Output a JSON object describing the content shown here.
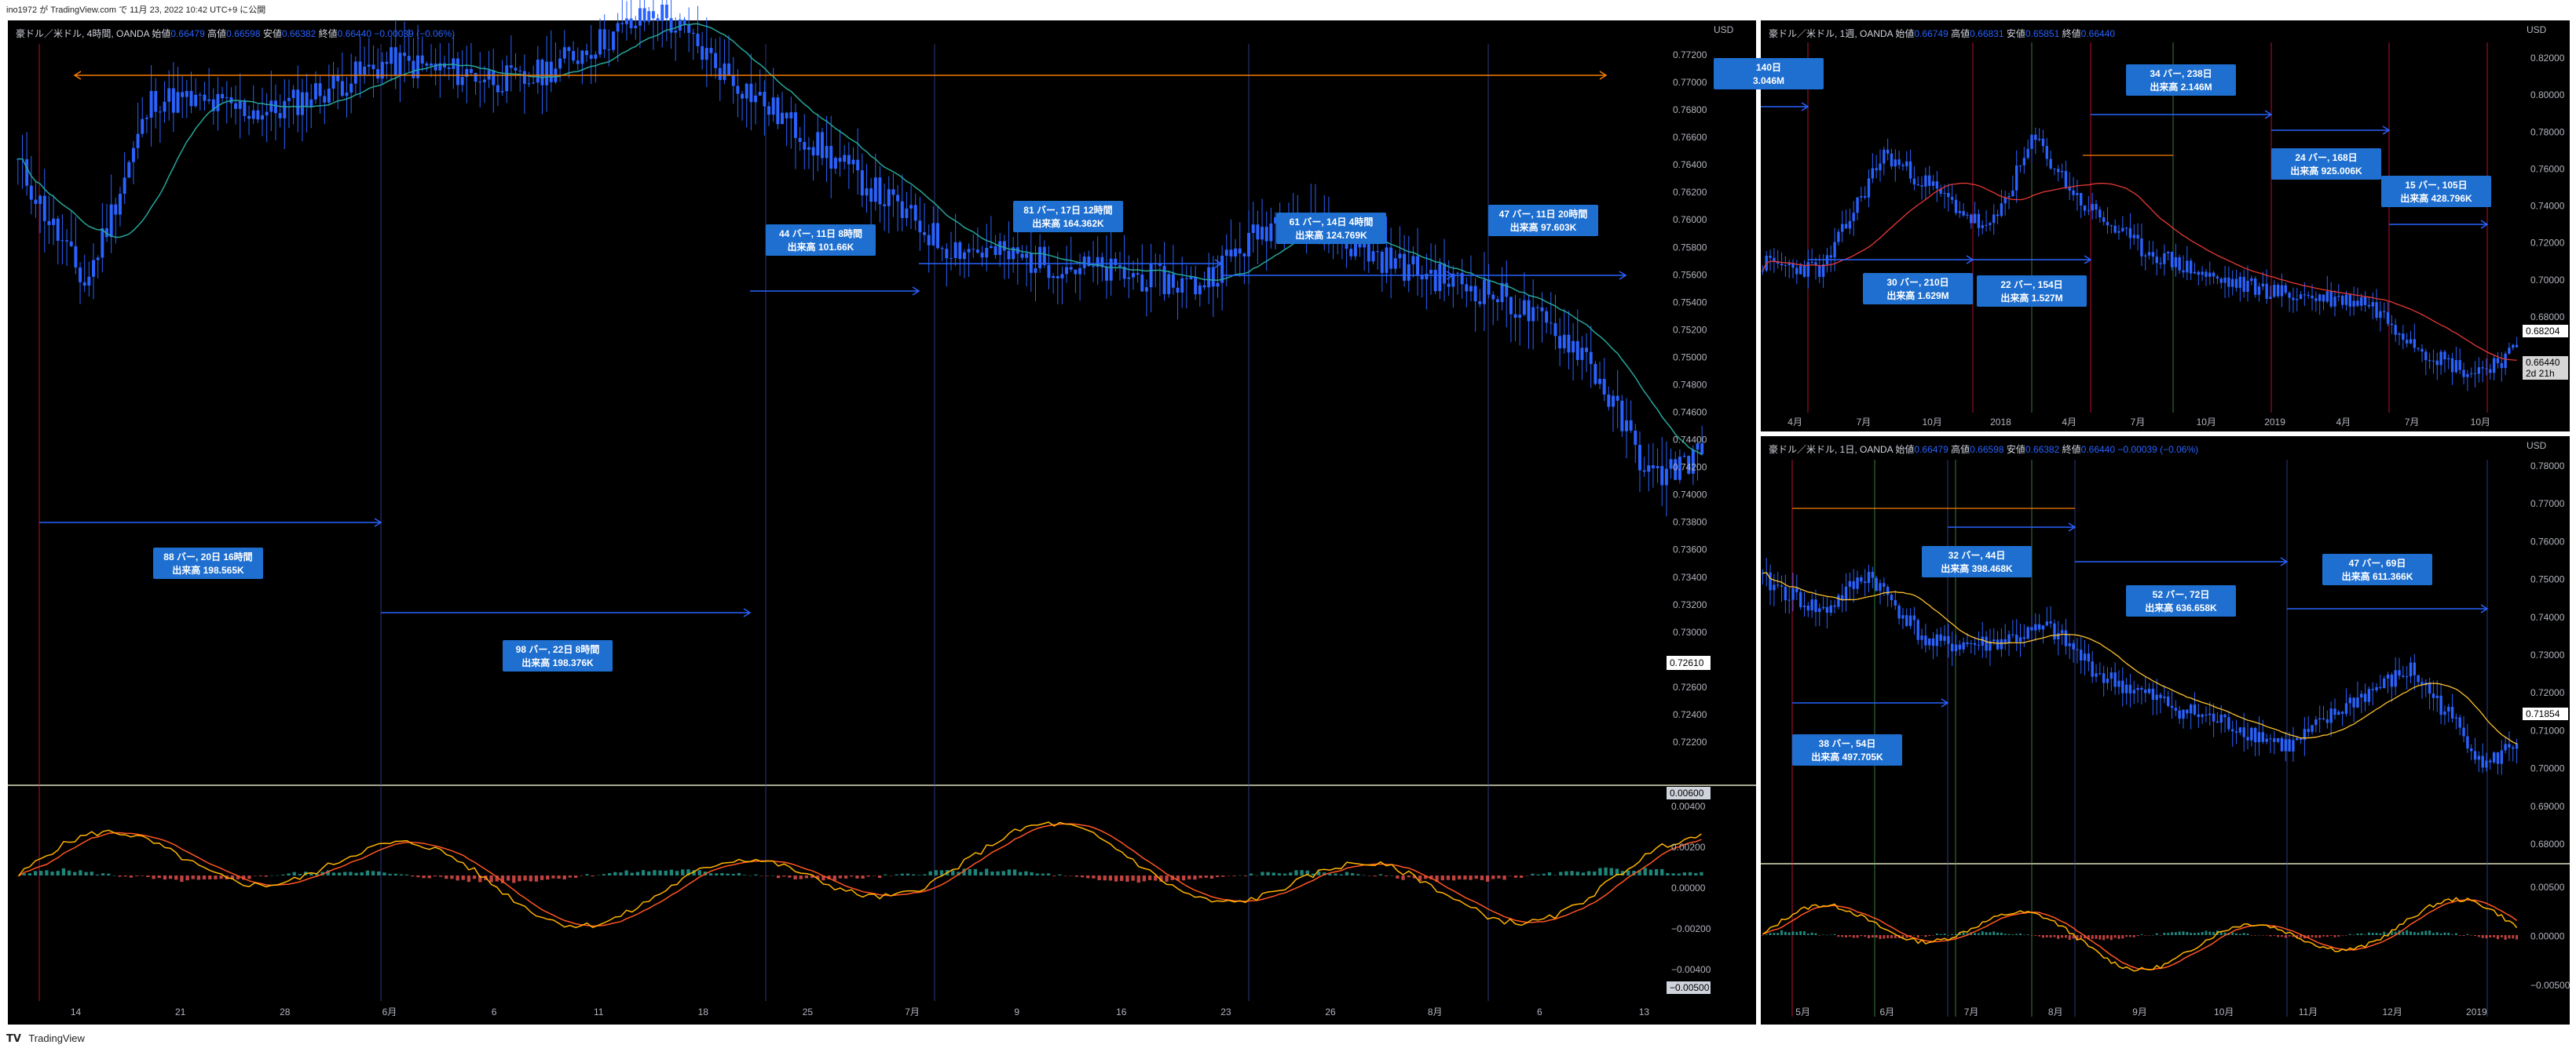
{
  "header": {
    "published_by": "ino1972 が TradingView.com で 11月 23, 2022 10:42 UTC+9 に公開"
  },
  "footer": {
    "brand": "TradingView",
    "logo": "tradingview-logo-icon"
  },
  "panes": {
    "main": {
      "legend": {
        "symbol": "豪ドル／米ドル, 4時間, OANDA",
        "open_label": "始値",
        "open": "0.66479",
        "high_label": "高値",
        "high": "0.66598",
        "low_label": "安値",
        "low": "0.66382",
        "close_label": "終値",
        "close": "0.66440",
        "change": "−0.00039 (−0.06%)"
      },
      "currency": "USD",
      "price_axis": [
        "0.77200",
        "0.77000",
        "0.76800",
        "0.76600",
        "0.76400",
        "0.76200",
        "0.76000",
        "0.75800",
        "0.75600",
        "0.75400",
        "0.75200",
        "0.75000",
        "0.74800",
        "0.74600",
        "0.74400",
        "0.74200",
        "0.74000",
        "0.73800",
        "0.73600",
        "0.73400",
        "0.73200",
        "0.73000",
        "0.72800",
        "0.72600",
        "0.72400",
        "0.72200"
      ],
      "price_tag": "0.72610",
      "macd_axis": [
        "0.00400",
        "0.00200",
        "0.00000",
        "−0.00200",
        "−0.00400"
      ],
      "macd_top_tag": "0.00600",
      "macd_bottom_tag": "−0.00500",
      "time_axis": [
        "14",
        "21",
        "28",
        "6月",
        "6",
        "11",
        "18",
        "25",
        "7月",
        "9",
        "16",
        "23",
        "26",
        "8月",
        "6",
        "13"
      ],
      "measure_labels": [
        {
          "l1": "88 バー, 20日 16時間",
          "l2": "出来高 198.565K"
        },
        {
          "l1": "98 バー, 22日 8時間",
          "l2": "出来高 198.376K"
        },
        {
          "l1": "44 バー, 11日 8時間",
          "l2": "出来高 101.66K"
        },
        {
          "l1": "81 バー, 17日 12時間",
          "l2": "出来高 164.362K"
        },
        {
          "l1": "61 バー, 14日 4時間",
          "l2": "出来高 124.769K"
        },
        {
          "l1": "47 バー, 11日 20時間",
          "l2": "出来高 97.603K"
        }
      ]
    },
    "weekly": {
      "legend": {
        "symbol": "豪ドル／米ドル, 1週, OANDA",
        "open_label": "始値",
        "open": "0.66749",
        "high_label": "高値",
        "high": "0.66831",
        "low_label": "安値",
        "low": "0.65851",
        "close_label": "終値",
        "close": "0.66440"
      },
      "currency": "USD",
      "price_axis": [
        "0.82000",
        "0.80000",
        "0.78000",
        "0.76000",
        "0.74000",
        "0.72000",
        "0.70000",
        "0.68000"
      ],
      "price_tag": "0.68204",
      "last_tag": "0.66440",
      "countdown": "2d 21h",
      "time_axis": [
        "4月",
        "7月",
        "10月",
        "2018",
        "4月",
        "7月",
        "10月",
        "2019",
        "4月",
        "7月",
        "10月"
      ],
      "measure_labels": [
        {
          "l1": "140日",
          "l2": "3.046M"
        },
        {
          "l1": "30 バー, 210日",
          "l2": "出来高 1.629M"
        },
        {
          "l1": "22 バー, 154日",
          "l2": "出来高 1.527M"
        },
        {
          "l1": "34 バー, 238日",
          "l2": "出来高 2.146M"
        },
        {
          "l1": "24 バー, 168日",
          "l2": "出来高 925.006K"
        },
        {
          "l1": "15 バー, 105日",
          "l2": "出来高 428.796K"
        }
      ]
    },
    "daily": {
      "legend": {
        "symbol": "豪ドル／米ドル, 1日, OANDA",
        "open_label": "始値",
        "open": "0.66479",
        "high_label": "高値",
        "high": "0.66598",
        "low_label": "安値",
        "low": "0.66382",
        "close_label": "終値",
        "close": "0.66440",
        "change": "−0.00039 (−0.06%)"
      },
      "currency": "USD",
      "price_axis": [
        "0.78000",
        "0.77000",
        "0.76000",
        "0.75000",
        "0.74000",
        "0.73000",
        "0.72000",
        "0.71000",
        "0.70000",
        "0.69000",
        "0.68000"
      ],
      "price_tag": "0.71854",
      "macd_axis": [
        "0.00500",
        "0.00000",
        "−0.00500"
      ],
      "time_axis": [
        "5月",
        "6月",
        "7月",
        "8月",
        "9月",
        "10月",
        "11月",
        "12月",
        "2019"
      ],
      "measure_labels": [
        {
          "l1": "38 バー, 54日",
          "l2": "出来高 497.705K"
        },
        {
          "l1": "32 バー, 44日",
          "l2": "出来高 398.468K"
        },
        {
          "l1": "52 バー, 72日",
          "l2": "出来高 636.658K"
        },
        {
          "l1": "47 バー, 69日",
          "l2": "出来高 611.366K"
        }
      ]
    }
  },
  "colors": {
    "candle": "#2962ff",
    "ma_main": "#26a69a",
    "ma_weekly": "#e53935",
    "ma_daily": "#fbc02d",
    "macd_line": "#ffb300",
    "signal_line": "#ff5722",
    "hist_up": "#26a69a",
    "hist_down": "#ef5350",
    "measure_line": "#2962ff",
    "range_arrow": "#f57c00",
    "vline_red": "#ff1744",
    "vline_blue": "#3f51b5",
    "vline_green": "#4caf50"
  }
}
